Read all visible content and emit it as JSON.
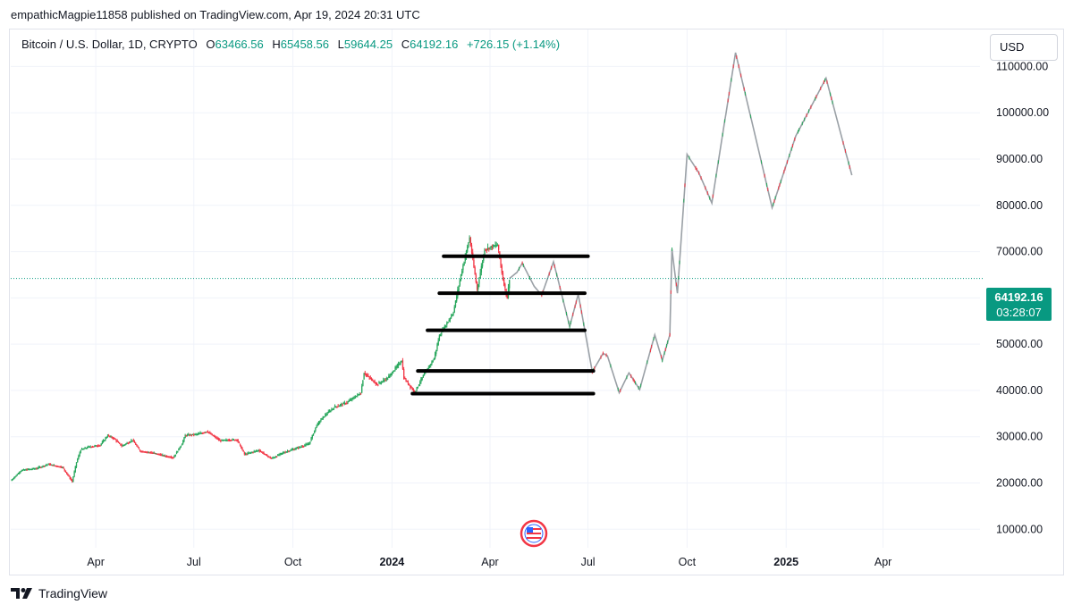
{
  "header": {
    "published_text": "empathicMagpie11858 published on TradingView.com, Apr 19, 2024 20:31 UTC"
  },
  "legend": {
    "symbol": "Bitcoin / U.S. Dollar, 1D, CRYPTO",
    "open_label": "O",
    "open_value": "63466.56",
    "high_label": "H",
    "high_value": "65458.56",
    "low_label": "L",
    "low_value": "59644.25",
    "close_label": "C",
    "close_value": "64192.16",
    "change": "+726.15 (+1.14%)"
  },
  "currency_button": "USD",
  "price_tag": {
    "price": "64192.16",
    "countdown": "03:28:07"
  },
  "footer": {
    "brand": "TradingView",
    "logo_icon": "tradingview-logo-icon"
  },
  "watermark_icon": "us-flag-badge-icon",
  "colors": {
    "up": "#089981",
    "up_candle": "#26a65b",
    "down": "#f23645",
    "projection": "#9aa0a6",
    "levels": "#000000",
    "grid": "#f0f3fa",
    "current_price_line": "#089981"
  },
  "chart_data": {
    "type": "candlestick",
    "instrument": "Bitcoin / U.S. Dollar, 1D, CRYPTO",
    "y_ticks": [
      110000,
      100000,
      90000,
      80000,
      70000,
      60000,
      50000,
      40000,
      30000,
      20000,
      10000
    ],
    "y_tick_labels": [
      "110000.00",
      "100000.00",
      "90000.00",
      "80000.00",
      "70000.00",
      "60000.00",
      "50000.00",
      "40000.00",
      "30000.00",
      "20000.00",
      "10000.00"
    ],
    "ylim": [
      6000,
      118000
    ],
    "x_ticks": [
      {
        "label": "Apr",
        "date": "2023-04-01",
        "bold": false
      },
      {
        "label": "Jul",
        "date": "2023-07-01",
        "bold": false
      },
      {
        "label": "Oct",
        "date": "2023-10-01",
        "bold": false
      },
      {
        "label": "2024",
        "date": "2024-01-01",
        "bold": true
      },
      {
        "label": "Apr",
        "date": "2024-04-01",
        "bold": false
      },
      {
        "label": "Jul",
        "date": "2024-07-01",
        "bold": false
      },
      {
        "label": "Oct",
        "date": "2024-10-01",
        "bold": false
      },
      {
        "label": "2025",
        "date": "2025-01-01",
        "bold": true
      },
      {
        "label": "Apr",
        "date": "2025-04-01",
        "bold": false
      }
    ],
    "xlim": [
      "2023-01-12",
      "2025-06-30"
    ],
    "current_price": 64192.16,
    "price_path": [
      [
        "2023-01-12",
        20500
      ],
      [
        "2023-01-22",
        22800
      ],
      [
        "2023-02-05",
        23200
      ],
      [
        "2023-02-16",
        24100
      ],
      [
        "2023-03-01",
        23400
      ],
      [
        "2023-03-10",
        20300
      ],
      [
        "2023-03-14",
        24500
      ],
      [
        "2023-03-18",
        27200
      ],
      [
        "2023-03-25",
        27800
      ],
      [
        "2023-04-05",
        28200
      ],
      [
        "2023-04-12",
        30300
      ],
      [
        "2023-04-18",
        29600
      ],
      [
        "2023-04-25",
        28000
      ],
      [
        "2023-05-05",
        29300
      ],
      [
        "2023-05-12",
        26900
      ],
      [
        "2023-05-25",
        26500
      ],
      [
        "2023-06-05",
        25800
      ],
      [
        "2023-06-12",
        25500
      ],
      [
        "2023-06-20",
        28500
      ],
      [
        "2023-06-23",
        30300
      ],
      [
        "2023-07-05",
        30600
      ],
      [
        "2023-07-13",
        31200
      ],
      [
        "2023-07-25",
        29200
      ],
      [
        "2023-08-10",
        29400
      ],
      [
        "2023-08-17",
        26200
      ],
      [
        "2023-08-30",
        27100
      ],
      [
        "2023-09-11",
        25300
      ],
      [
        "2023-09-22",
        26600
      ],
      [
        "2023-10-05",
        27600
      ],
      [
        "2023-10-16",
        28500
      ],
      [
        "2023-10-23",
        32500
      ],
      [
        "2023-10-30",
        34500
      ],
      [
        "2023-11-09",
        36500
      ],
      [
        "2023-11-20",
        37400
      ],
      [
        "2023-12-03",
        39500
      ],
      [
        "2023-12-06",
        43800
      ],
      [
        "2023-12-18",
        41300
      ],
      [
        "2023-12-28",
        42700
      ],
      [
        "2024-01-10",
        46500
      ],
      [
        "2024-01-12",
        42700
      ],
      [
        "2024-01-22",
        39600
      ],
      [
        "2024-01-30",
        43200
      ],
      [
        "2024-02-09",
        46900
      ],
      [
        "2024-02-14",
        51800
      ],
      [
        "2024-02-27",
        56900
      ],
      [
        "2024-03-05",
        65000
      ],
      [
        "2024-03-13",
        73000
      ],
      [
        "2024-03-20",
        61800
      ],
      [
        "2024-03-27",
        70500
      ],
      [
        "2024-04-08",
        71500
      ],
      [
        "2024-04-13",
        64000
      ],
      [
        "2024-04-17",
        60000
      ],
      [
        "2024-04-19",
        64192
      ]
    ],
    "projection_path": [
      [
        "2024-04-19",
        64192
      ],
      [
        "2024-04-26",
        65500
      ],
      [
        "2024-05-01",
        67500
      ],
      [
        "2024-05-12",
        62500
      ],
      [
        "2024-05-19",
        60600
      ],
      [
        "2024-05-30",
        67800
      ],
      [
        "2024-06-14",
        53800
      ],
      [
        "2024-06-22",
        60800
      ],
      [
        "2024-07-05",
        44000
      ],
      [
        "2024-07-15",
        48000
      ],
      [
        "2024-07-19",
        47500
      ],
      [
        "2024-07-30",
        39500
      ],
      [
        "2024-08-08",
        43800
      ],
      [
        "2024-08-18",
        40200
      ],
      [
        "2024-09-01",
        52000
      ],
      [
        "2024-09-08",
        46500
      ],
      [
        "2024-09-15",
        52000
      ],
      [
        "2024-09-17",
        70500
      ],
      [
        "2024-09-22",
        61000
      ],
      [
        "2024-10-01",
        91000
      ],
      [
        "2024-10-12",
        87000
      ],
      [
        "2024-10-24",
        80500
      ],
      [
        "2024-11-15",
        113000
      ],
      [
        "2024-12-19",
        79500
      ],
      [
        "2025-01-10",
        95000
      ],
      [
        "2025-02-07",
        107500
      ],
      [
        "2025-03-03",
        86500
      ]
    ],
    "levels": [
      {
        "price": 69000,
        "from": "2024-02-18",
        "to": "2024-07-01"
      },
      {
        "price": 61000,
        "from": "2024-02-14",
        "to": "2024-06-28"
      },
      {
        "price": 53000,
        "from": "2024-02-03",
        "to": "2024-06-28"
      },
      {
        "price": 44200,
        "from": "2024-01-25",
        "to": "2024-07-06"
      },
      {
        "price": 39300,
        "from": "2024-01-20",
        "to": "2024-07-06"
      }
    ]
  }
}
